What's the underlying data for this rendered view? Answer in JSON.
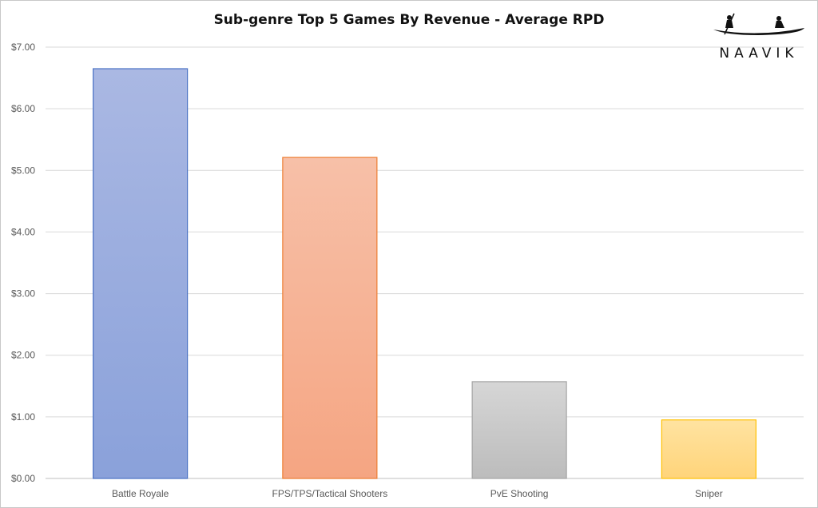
{
  "chart_data": {
    "type": "bar",
    "title": "Sub-genre Top 5 Games By Revenue - Average RPD",
    "xlabel": "",
    "ylabel": "",
    "categories": [
      "Battle Royale",
      "FPS/TPS/Tactical Shooters",
      "PvE Shooting",
      "Sniper"
    ],
    "values": [
      6.65,
      5.21,
      1.57,
      0.95
    ],
    "ylim": [
      0,
      7
    ],
    "yticks": [
      "$0.00",
      "$1.00",
      "$2.00",
      "$3.00",
      "$4.00",
      "$5.00",
      "$6.00",
      "$7.00"
    ],
    "grid": true,
    "legend": "none",
    "bar_colors": [
      {
        "top": "#aab8e3",
        "bottom": "#8aa1da",
        "stroke": "#4a72c4"
      },
      {
        "top": "#f7c0a8",
        "bottom": "#f5a582",
        "stroke": "#ed7d31"
      },
      {
        "top": "#d6d6d6",
        "bottom": "#bcbcbc",
        "stroke": "#a5a5a5"
      },
      {
        "top": "#ffe3a1",
        "bottom": "#ffd47a",
        "stroke": "#ffc000"
      }
    ]
  },
  "logo": {
    "text": "NAAVIK",
    "icon": "rowing-boat-icon"
  }
}
